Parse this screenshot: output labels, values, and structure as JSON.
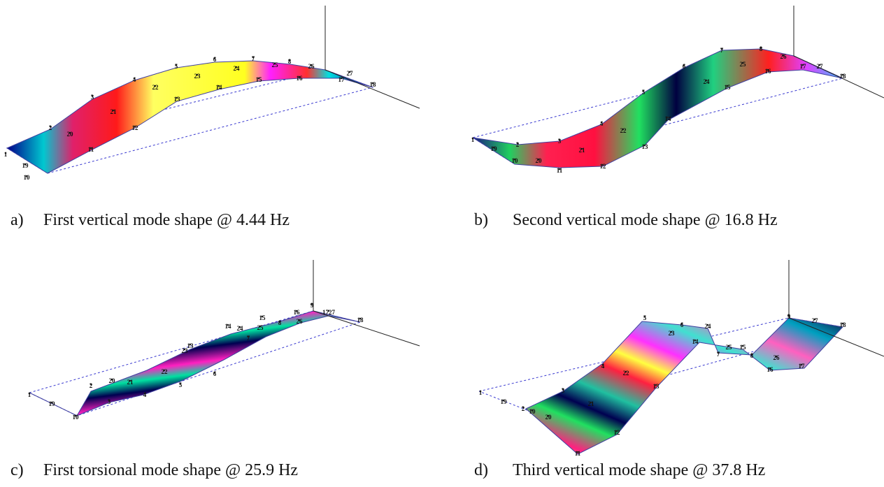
{
  "panels": [
    {
      "label": "a)",
      "caption": "First vertical mode shape @ 4.44 Hz",
      "nodes": [
        "1",
        "19",
        "10",
        "20",
        "2",
        "11",
        "21",
        "3",
        "12",
        "4",
        "22",
        "13",
        "5",
        "23",
        "14",
        "6",
        "24",
        "15",
        "7",
        "25",
        "8",
        "16",
        "26",
        "17",
        "27",
        "18"
      ]
    },
    {
      "label": "b)",
      "caption": "Second vertical mode shape @ 16.8 Hz",
      "nodes": [
        "1",
        "19",
        "10",
        "2",
        "20",
        "11",
        "3",
        "21",
        "12",
        "4",
        "22",
        "13",
        "5",
        "14",
        "6",
        "24",
        "15",
        "7",
        "25",
        "8",
        "16",
        "26",
        "17",
        "27",
        "18"
      ]
    },
    {
      "label": "c)",
      "caption": "First torsional mode shape @ 25.9 Hz",
      "nodes": [
        "1",
        "19",
        "10",
        "2",
        "20",
        "3",
        "21",
        "4",
        "22",
        "5",
        "6",
        "14",
        "23",
        "13",
        "15",
        "24",
        "7",
        "8",
        "16",
        "25",
        "26",
        "9",
        "1727",
        "18"
      ]
    },
    {
      "label": "d)",
      "caption": "Third vertical mode shape @ 37.8 Hz",
      "nodes": [
        "1",
        "19",
        "2",
        "10",
        "20",
        "11",
        "3",
        "21",
        "12",
        "4",
        "22",
        "13",
        "5",
        "23",
        "14",
        "6",
        "24",
        "7",
        "15",
        "8",
        "25",
        "16",
        "26",
        "17",
        "9",
        "27",
        "18"
      ]
    }
  ]
}
